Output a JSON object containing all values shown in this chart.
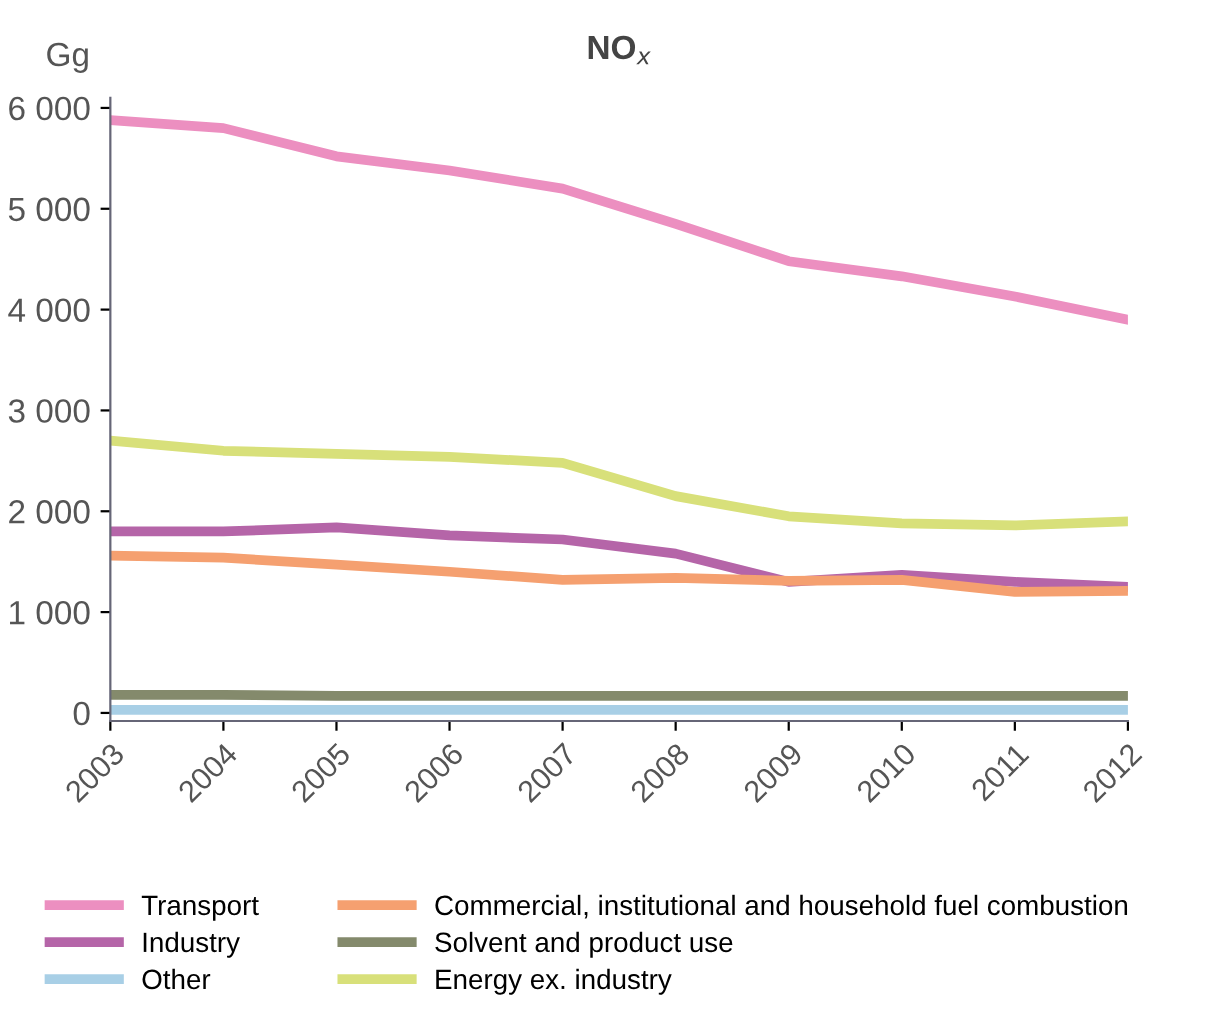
{
  "chart_data": {
    "type": "line",
    "title": "NO$_{x}$",
    "ylabel": "Gg",
    "categories": [
      "2003",
      "2004",
      "2005",
      "2006",
      "2007",
      "2008",
      "2009",
      "2010",
      "2011",
      "2012"
    ],
    "series": [
      {
        "name": "Transport",
        "color": "#ec8fc0",
        "values": [
          5880,
          5800,
          5520,
          5380,
          5200,
          4850,
          4480,
          4330,
          4130,
          3900
        ]
      },
      {
        "name": "Industry",
        "color": "#b565a8",
        "values": [
          1800,
          1800,
          1840,
          1760,
          1720,
          1580,
          1300,
          1370,
          1300,
          1250
        ]
      },
      {
        "name": "Other",
        "color": "#a8cfe6",
        "values": [
          30,
          30,
          30,
          30,
          30,
          30,
          30,
          30,
          30,
          30
        ]
      },
      {
        "name": "Commercial, institutional and household fuel combustion",
        "color": "#f5a070",
        "values": [
          1560,
          1540,
          1470,
          1400,
          1320,
          1340,
          1310,
          1320,
          1200,
          1210
        ]
      },
      {
        "name": "Solvent and product use",
        "color": "#848a6c",
        "values": [
          180,
          180,
          170,
          170,
          170,
          170,
          170,
          170,
          170,
          170
        ]
      },
      {
        "name": "Energy ex. industry",
        "color": "#d8e07a",
        "values": [
          2700,
          2600,
          2570,
          2540,
          2480,
          2150,
          1950,
          1880,
          1860,
          1900
        ]
      }
    ],
    "ylim": [
      -80,
      6100
    ],
    "yticks": [
      {
        "value": 0,
        "label": "0"
      },
      {
        "value": 1000,
        "label": "1 000"
      },
      {
        "value": 2000,
        "label": "2 000"
      },
      {
        "value": 3000,
        "label": "3 000"
      },
      {
        "value": 4000,
        "label": "4 000"
      },
      {
        "value": 5000,
        "label": "5 000"
      },
      {
        "value": 6000,
        "label": "6 000"
      }
    ],
    "grid": false,
    "legend": "bottom",
    "marker": "none",
    "line_style": "solid"
  }
}
